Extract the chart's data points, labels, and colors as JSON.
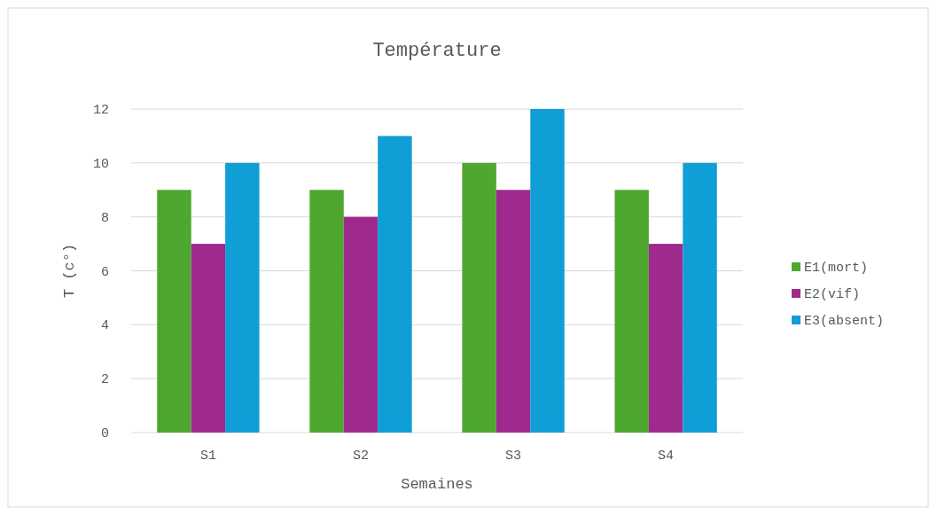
{
  "chart_data": {
    "type": "bar",
    "title": "Température",
    "xlabel": "Semaines",
    "ylabel": "T (c°)",
    "categories": [
      "S1",
      "S2",
      "S3",
      "S4"
    ],
    "series": [
      {
        "name": "E1(mort)",
        "color": "#4ea72e",
        "values": [
          9,
          9,
          10,
          9
        ]
      },
      {
        "name": "E2(vif)",
        "color": "#9e2a8e",
        "values": [
          7,
          8,
          9,
          7
        ]
      },
      {
        "name": "E3(absent)",
        "color": "#0f9ed5",
        "values": [
          10,
          11,
          12,
          10
        ]
      }
    ],
    "ylim": [
      0,
      12
    ],
    "yticks": [
      0,
      2,
      4,
      6,
      8,
      10,
      12
    ],
    "grid": "y",
    "legend": "right"
  }
}
